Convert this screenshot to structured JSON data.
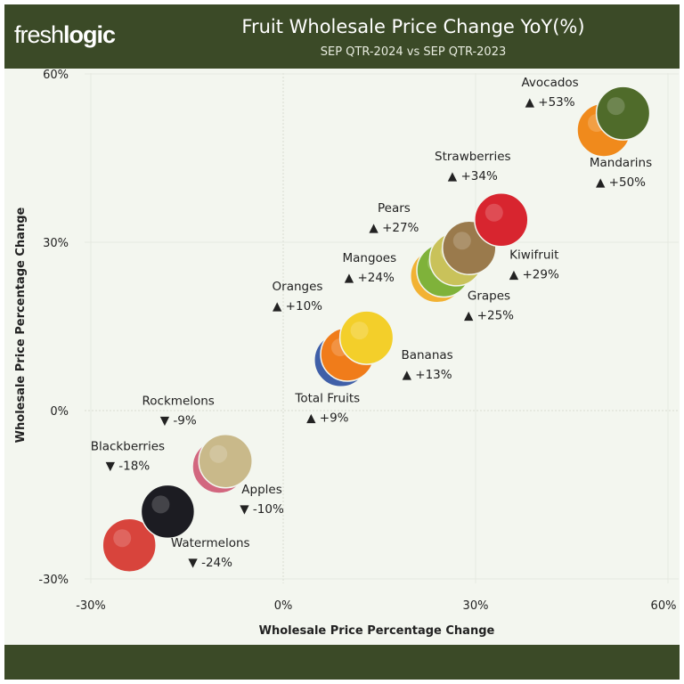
{
  "header": {
    "logo_light": "fresh",
    "logo_bold": "logic",
    "title": "Fruit Wholesale Price Change YoY(%)",
    "subtitle": "SEP QTR-2024 vs SEP QTR-2023"
  },
  "colors": {
    "header_bg": "#3b4a27",
    "plot_bg": "#f3f6ef",
    "up_marker": "#111111",
    "down_marker": "#111111"
  },
  "chart_data": {
    "type": "scatter",
    "title": "Fruit Wholesale Price Change YoY(%)",
    "subtitle": "SEP QTR-2024 vs SEP QTR-2023",
    "xlabel": "Wholesale Price Percentage Change",
    "ylabel": "Wholesale Price Percentage Change",
    "xlim": [
      -30,
      60
    ],
    "ylim": [
      -30,
      60
    ],
    "xticks": [
      "-30%",
      "0%",
      "30%",
      "60%"
    ],
    "yticks": [
      "-30%",
      "0%",
      "30%",
      "60%"
    ],
    "grid": true,
    "marker": "fruit photo circles",
    "points": [
      {
        "name": "Avocados",
        "x": 53,
        "y": 53,
        "label": "▲ +53%",
        "color": "#4f6b2a"
      },
      {
        "name": "Mandarins",
        "x": 50,
        "y": 50,
        "label": "▲ +50%",
        "color": "#f08a1c"
      },
      {
        "name": "Strawberries",
        "x": 34,
        "y": 34,
        "label": "▲ +34%",
        "color": "#d8252f"
      },
      {
        "name": "Kiwifruit",
        "x": 29,
        "y": 29,
        "label": "▲ +29%",
        "color": "#9a7a4c"
      },
      {
        "name": "Pears",
        "x": 27,
        "y": 27,
        "label": "▲ +27%",
        "color": "#c9c25a"
      },
      {
        "name": "Grapes",
        "x": 25,
        "y": 25,
        "label": "▲ +25%",
        "color": "#7fb23a"
      },
      {
        "name": "Mangoes",
        "x": 24,
        "y": 24,
        "label": "▲ +24%",
        "color": "#f2b233"
      },
      {
        "name": "Bananas",
        "x": 13,
        "y": 13,
        "label": "▲ +13%",
        "color": "#f3cf2a"
      },
      {
        "name": "Oranges",
        "x": 10,
        "y": 10,
        "label": "▲ +10%",
        "color": "#f07c1a"
      },
      {
        "name": "Total Fruits",
        "x": 9,
        "y": 9,
        "label": "▲ +9%",
        "color": "#3f5fa8"
      },
      {
        "name": "Rockmelons",
        "x": -9,
        "y": -9,
        "label": "▼ -9%",
        "color": "#c9b98a"
      },
      {
        "name": "Apples",
        "x": -10,
        "y": -10,
        "label": "▼ -10%",
        "color": "#d2677f"
      },
      {
        "name": "Blackberries",
        "x": -18,
        "y": -18,
        "label": "▼ -18%",
        "color": "#1c1c22"
      },
      {
        "name": "Watermelons",
        "x": -24,
        "y": -24,
        "label": "▼ -24%",
        "color": "#d8443c"
      }
    ]
  }
}
